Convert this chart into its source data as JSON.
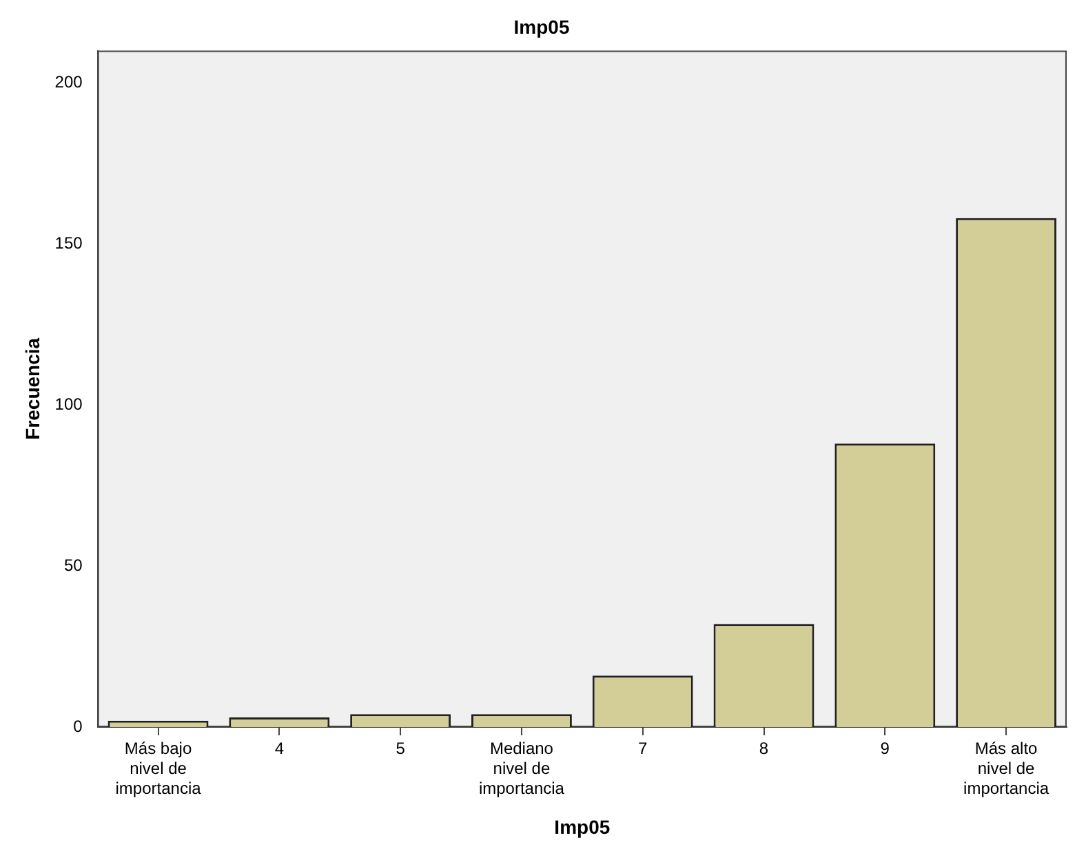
{
  "chart_data": {
    "type": "bar",
    "title": "Imp05",
    "xlabel": "Imp05",
    "ylabel": "Frecuencia",
    "categories": [
      "Más bajo nivel de importancia",
      "4",
      "5",
      "Mediano nivel de importancia",
      "7",
      "8",
      "9",
      "Más alto nivel de importancia"
    ],
    "values": [
      2,
      3,
      4,
      4,
      16,
      32,
      88,
      158
    ],
    "color": "#d3ce97",
    "ylim": [
      0,
      210
    ],
    "yticks": [
      0,
      50,
      100,
      150,
      200
    ],
    "grid": false,
    "legend": false
  }
}
